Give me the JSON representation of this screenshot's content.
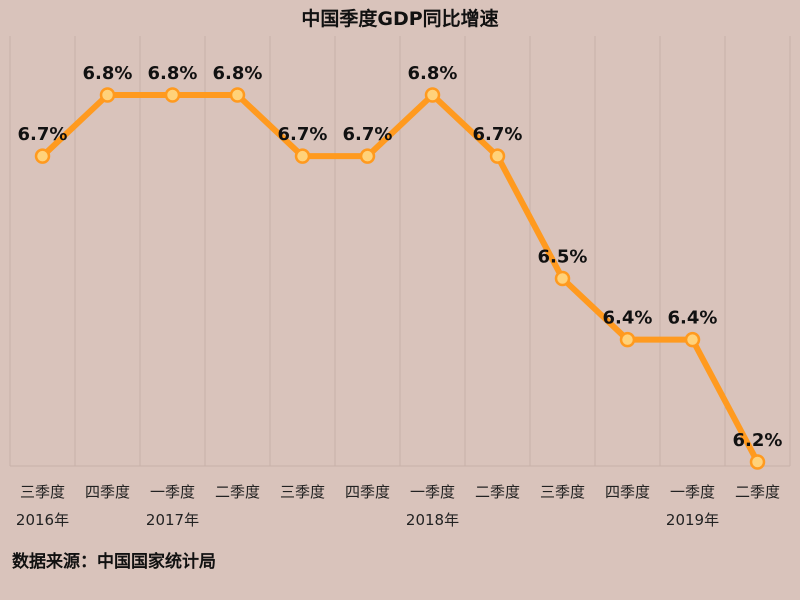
{
  "chart_data": {
    "type": "line",
    "title": "中国季度GDP同比增速",
    "source": "数据来源：中国国家统计局",
    "categories": [
      "三季度",
      "四季度",
      "一季度",
      "二季度",
      "三季度",
      "四季度",
      "一季度",
      "二季度",
      "三季度",
      "四季度",
      "一季度",
      "二季度"
    ],
    "years": [
      {
        "label": "2016年",
        "index": 0
      },
      {
        "label": "2017年",
        "index": 2
      },
      {
        "label": "2018年",
        "index": 6
      },
      {
        "label": "2019年",
        "index": 10
      }
    ],
    "values": [
      6.7,
      6.8,
      6.8,
      6.8,
      6.7,
      6.7,
      6.8,
      6.7,
      6.5,
      6.4,
      6.4,
      6.2
    ],
    "value_labels": [
      "6.7%",
      "6.8%",
      "6.8%",
      "6.8%",
      "6.7%",
      "6.7%",
      "6.8%",
      "6.7%",
      "6.5%",
      "6.4%",
      "6.4%",
      "6.2%"
    ],
    "ylim": [
      6.2,
      6.8
    ],
    "grid": "vertical",
    "legend": "none",
    "colors": {
      "line": "#ff9a1f",
      "marker_fill": "#ffd27a",
      "background": "#d9c3bb",
      "grid": "#c7b0a8"
    }
  }
}
